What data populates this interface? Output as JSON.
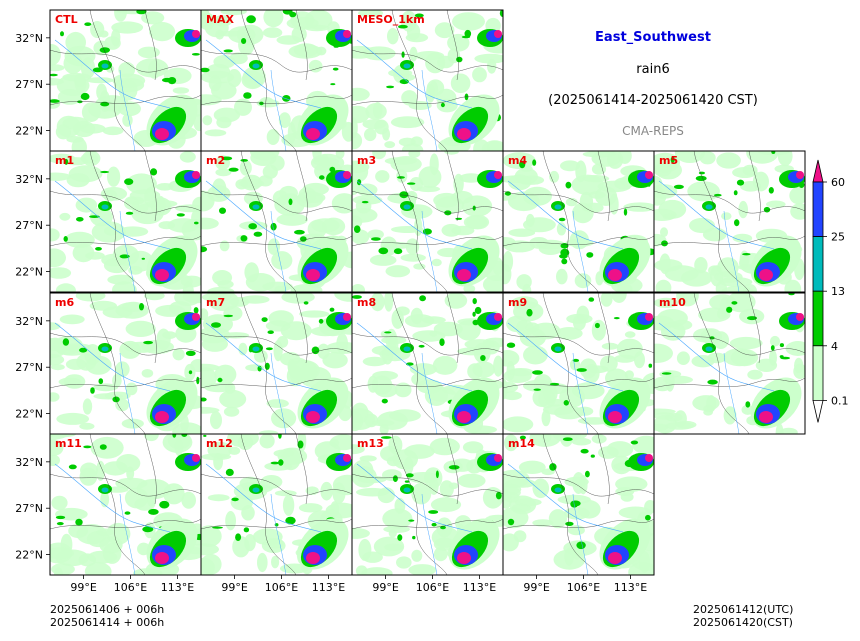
{
  "header": {
    "region": "East_Southwest",
    "variable": "rain6",
    "period": "(2025061414-2025061420 CST)",
    "model": "CMA-REPS"
  },
  "footer": {
    "init_utc": "2025061406  +  006h",
    "init_cst": "2025061414  +  006h",
    "valid_utc": "2025061412(UTC)",
    "valid_cst": "2025061420(CST)"
  },
  "chart_data": {
    "type": "heatmap",
    "panels": [
      "CTL",
      "MAX",
      "MESO_1km",
      "m1",
      "m2",
      "m3",
      "m4",
      "m5",
      "m6",
      "m7",
      "m8",
      "m9",
      "m10",
      "m11",
      "m12",
      "m13",
      "m14"
    ],
    "panel_label_color": "#ee0000",
    "x_ticks": [
      "99°E",
      "106°E",
      "113°E"
    ],
    "x_tick_values": [
      99,
      106,
      113
    ],
    "y_ticks": [
      "32°N",
      "27°N",
      "22°N"
    ],
    "y_tick_values": [
      32,
      27,
      22
    ],
    "xlim": [
      94,
      116.5
    ],
    "ylim": [
      19.8,
      35
    ],
    "colorbar": {
      "levels": [
        "0.1",
        "4",
        "13",
        "25",
        "60"
      ],
      "colors": [
        "#ccffcc",
        "#00cc00",
        "#00bbbb",
        "#2244ff",
        "#ee1188"
      ],
      "extend": "both"
    }
  }
}
